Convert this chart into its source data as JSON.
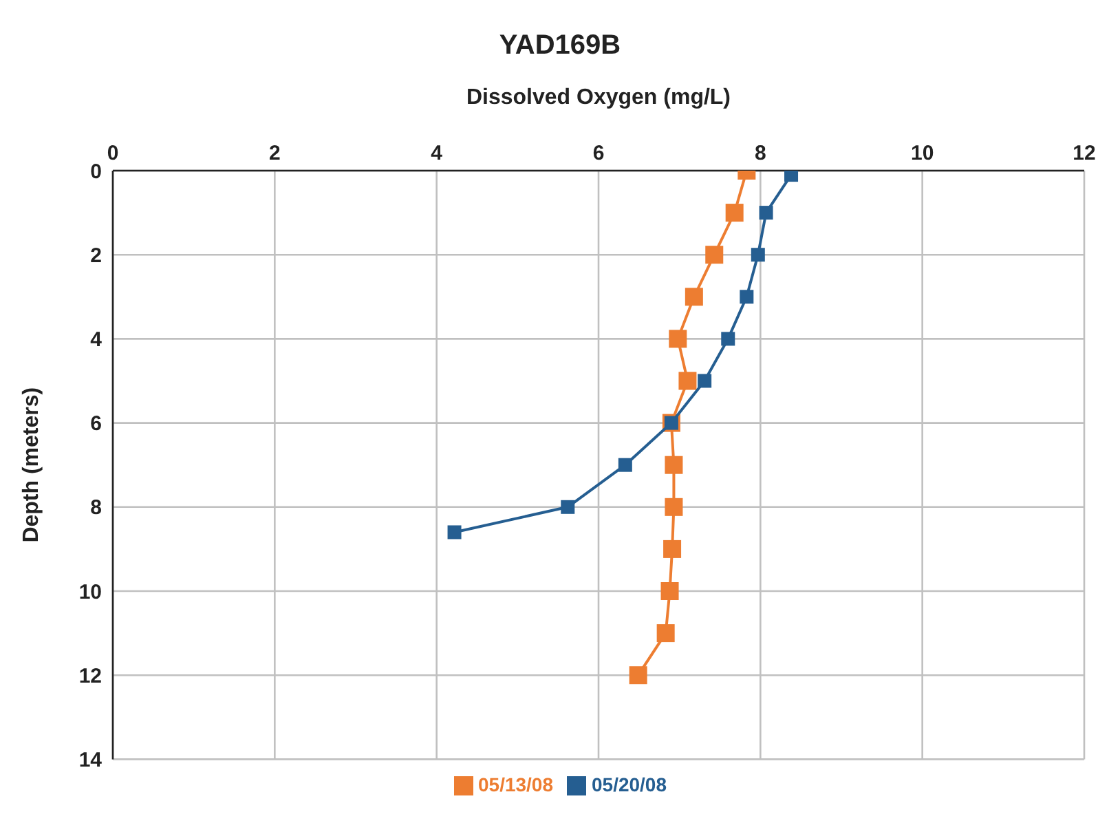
{
  "chart_data": {
    "type": "line",
    "title": "YAD169B",
    "xlabel": "Dissolved Oxygen (mg/L)",
    "ylabel": "Depth (meters)",
    "xlim": [
      0,
      12
    ],
    "xticks": [
      0,
      2,
      4,
      6,
      8,
      10,
      12
    ],
    "ylim": [
      14,
      0
    ],
    "yticks": [
      0,
      2,
      4,
      6,
      8,
      10,
      12,
      14
    ],
    "grid": true,
    "legend": "bottom",
    "marker": "square",
    "line_style": "solid",
    "series": [
      {
        "name": "05/13/08",
        "color": "#ed7d31",
        "x": [
          7.83,
          7.68,
          7.43,
          7.18,
          6.98,
          7.1,
          6.9,
          6.93,
          6.93,
          6.91,
          6.88,
          6.83,
          6.49
        ],
        "values": [
          0,
          1,
          2,
          3,
          4,
          5,
          6,
          7,
          8,
          9,
          10,
          11,
          12
        ]
      },
      {
        "name": "05/20/08",
        "color": "#255e91",
        "x": [
          8.38,
          8.07,
          7.97,
          7.83,
          7.6,
          7.31,
          6.9,
          6.33,
          5.62,
          4.22
        ],
        "values": [
          0.1,
          1,
          2,
          3,
          4,
          5,
          6,
          7,
          8,
          8.6
        ]
      }
    ]
  }
}
